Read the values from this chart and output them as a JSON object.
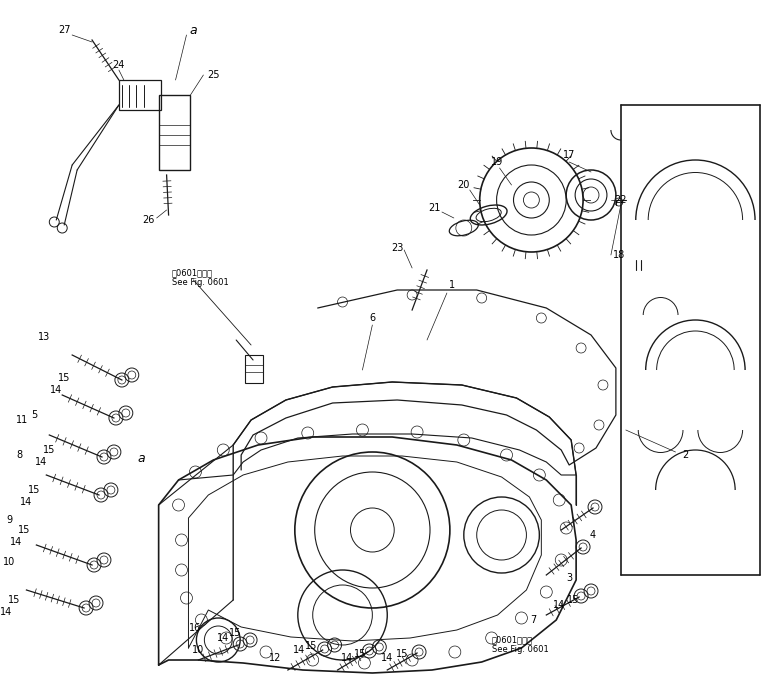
{
  "bg_color": "#ffffff",
  "line_color": "#1a1a1a",
  "fig_width": 7.62,
  "fig_height": 6.98,
  "dpi": 100,
  "note1_text": "第0601回参照\nSee Fig. 0601",
  "note2_text": "第0601回参照\nSee Fig. 0601"
}
